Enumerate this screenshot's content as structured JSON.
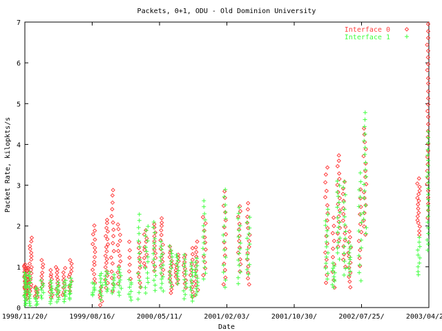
{
  "chart_data": {
    "type": "scatter",
    "title": "Packets, 0+1, ODU - Old Dominion University",
    "xlabel": "Date",
    "ylabel": "Packet Rate, kilopkts/s",
    "xlim": [
      "1998-11-20",
      "2003-04-20"
    ],
    "ylim": [
      0,
      7
    ],
    "x_ticks": [
      "1998/11/20/",
      "1999/08/16/",
      "2000/05/11/",
      "2001/02/03/",
      "2001/10/30/",
      "2002/07/25/",
      "2003/04/20/"
    ],
    "y_ticks": [
      "0",
      "1",
      "2",
      "3",
      "4",
      "5",
      "6",
      "7"
    ],
    "grid": false,
    "legend_position": "top-right",
    "series": [
      {
        "name": "Interface 0",
        "marker": "diamond",
        "color": "#ff4040",
        "clusters": [
          {
            "x": "1998-11-22",
            "ymin": 0.3,
            "ymax": 1.05,
            "n": 26
          },
          {
            "x": "1998-12-01",
            "ymin": 0.2,
            "ymax": 1.0,
            "n": 18
          },
          {
            "x": "1998-12-12",
            "ymin": 0.4,
            "ymax": 1.7,
            "n": 16
          },
          {
            "x": "1999-01-05",
            "ymin": 0.25,
            "ymax": 0.5,
            "n": 8
          },
          {
            "x": "1999-01-28",
            "ymin": 0.5,
            "ymax": 1.15,
            "n": 8
          },
          {
            "x": "1999-03-05",
            "ymin": 0.25,
            "ymax": 0.9,
            "n": 10
          },
          {
            "x": "1999-03-28",
            "ymin": 0.3,
            "ymax": 1.0,
            "n": 10
          },
          {
            "x": "1999-04-25",
            "ymin": 0.3,
            "ymax": 0.95,
            "n": 8
          },
          {
            "x": "1999-05-20",
            "ymin": 0.4,
            "ymax": 1.15,
            "n": 10
          },
          {
            "x": "1999-08-22",
            "ymin": 0.6,
            "ymax": 2.0,
            "n": 14
          },
          {
            "x": "1999-09-20",
            "ymin": 0.05,
            "ymax": 0.5,
            "n": 6
          },
          {
            "x": "1999-10-12",
            "ymin": 0.5,
            "ymax": 2.15,
            "n": 18
          },
          {
            "x": "1999-11-05",
            "ymin": 0.4,
            "ymax": 2.9,
            "n": 16
          },
          {
            "x": "1999-12-01",
            "ymin": 0.6,
            "ymax": 2.05,
            "n": 12
          },
          {
            "x": "2000-01-15",
            "ymin": 0.7,
            "ymax": 1.6,
            "n": 6
          },
          {
            "x": "2000-02-20",
            "ymin": 0.5,
            "ymax": 1.6,
            "n": 10
          },
          {
            "x": "2000-03-15",
            "ymin": 1.0,
            "ymax": 1.9,
            "n": 10
          },
          {
            "x": "2000-04-20",
            "ymin": 0.9,
            "ymax": 2.05,
            "n": 12
          },
          {
            "x": "2000-05-20",
            "ymin": 0.8,
            "ymax": 2.2,
            "n": 14
          },
          {
            "x": "2000-06-25",
            "ymin": 0.35,
            "ymax": 1.5,
            "n": 14
          },
          {
            "x": "2000-07-20",
            "ymin": 0.6,
            "ymax": 1.3,
            "n": 10
          },
          {
            "x": "2000-08-20",
            "ymin": 0.5,
            "ymax": 1.3,
            "n": 10
          },
          {
            "x": "2000-09-15",
            "ymin": 0.25,
            "ymax": 1.45,
            "n": 10
          },
          {
            "x": "2000-10-05",
            "ymin": 0.3,
            "ymax": 1.6,
            "n": 12
          },
          {
            "x": "2000-11-05",
            "ymin": 0.8,
            "ymax": 2.2,
            "n": 10
          },
          {
            "x": "2001-01-25",
            "ymin": 0.55,
            "ymax": 2.85,
            "n": 14
          },
          {
            "x": "2001-03-25",
            "ymin": 0.9,
            "ymax": 2.5,
            "n": 12
          },
          {
            "x": "2001-04-30",
            "ymin": 0.55,
            "ymax": 2.55,
            "n": 14
          },
          {
            "x": "2002-03-08",
            "ymin": 0.6,
            "ymax": 3.45,
            "n": 16
          },
          {
            "x": "2002-04-05",
            "ymin": 0.5,
            "ymax": 2.2,
            "n": 10
          },
          {
            "x": "2002-04-25",
            "ymin": 1.5,
            "ymax": 3.75,
            "n": 16
          },
          {
            "x": "2002-05-18",
            "ymin": 1.0,
            "ymax": 3.1,
            "n": 14
          },
          {
            "x": "2002-06-08",
            "ymin": 0.5,
            "ymax": 1.85,
            "n": 12
          },
          {
            "x": "2002-07-20",
            "ymin": 1.0,
            "ymax": 2.9,
            "n": 10
          },
          {
            "x": "2002-08-08",
            "ymin": 1.8,
            "ymax": 4.4,
            "n": 16
          },
          {
            "x": "2003-03-10",
            "ymin": 1.8,
            "ymax": 3.15,
            "n": 16
          },
          {
            "x": "2003-04-18",
            "ymin": 2.2,
            "ymax": 6.95,
            "n": 30
          }
        ]
      },
      {
        "name": "Interface 1",
        "marker": "plus",
        "color": "#40ff40",
        "clusters": [
          {
            "x": "1998-11-22",
            "ymin": 0.05,
            "ymax": 0.85,
            "n": 22
          },
          {
            "x": "1998-12-08",
            "ymin": 0.05,
            "ymax": 0.85,
            "n": 16
          },
          {
            "x": "1999-01-05",
            "ymin": 0.05,
            "ymax": 0.5,
            "n": 10
          },
          {
            "x": "1999-01-28",
            "ymin": 0.25,
            "ymax": 0.65,
            "n": 8
          },
          {
            "x": "1999-03-05",
            "ymin": 0.1,
            "ymax": 0.65,
            "n": 10
          },
          {
            "x": "1999-04-01",
            "ymin": 0.15,
            "ymax": 0.6,
            "n": 10
          },
          {
            "x": "1999-04-28",
            "ymin": 0.15,
            "ymax": 0.65,
            "n": 10
          },
          {
            "x": "1999-05-20",
            "ymin": 0.2,
            "ymax": 0.7,
            "n": 10
          },
          {
            "x": "1999-08-22",
            "ymin": 0.3,
            "ymax": 0.6,
            "n": 8
          },
          {
            "x": "1999-09-20",
            "ymin": 0.2,
            "ymax": 0.85,
            "n": 10
          },
          {
            "x": "1999-10-12",
            "ymin": 0.4,
            "ymax": 0.9,
            "n": 8
          },
          {
            "x": "1999-11-08",
            "ymin": 0.35,
            "ymax": 0.8,
            "n": 8
          },
          {
            "x": "1999-12-05",
            "ymin": 0.3,
            "ymax": 1.0,
            "n": 10
          },
          {
            "x": "2000-01-15",
            "ymin": 0.2,
            "ymax": 0.7,
            "n": 8
          },
          {
            "x": "2000-02-20",
            "ymin": 0.2,
            "ymax": 2.3,
            "n": 14
          },
          {
            "x": "2000-03-20",
            "ymin": 0.35,
            "ymax": 2.0,
            "n": 14
          },
          {
            "x": "2000-04-20",
            "ymin": 0.4,
            "ymax": 2.1,
            "n": 14
          },
          {
            "x": "2000-05-20",
            "ymin": 0.4,
            "ymax": 1.6,
            "n": 14
          },
          {
            "x": "2000-06-25",
            "ymin": 0.5,
            "ymax": 1.5,
            "n": 12
          },
          {
            "x": "2000-07-20",
            "ymin": 0.6,
            "ymax": 1.3,
            "n": 10
          },
          {
            "x": "2000-08-20",
            "ymin": 0.2,
            "ymax": 1.3,
            "n": 12
          },
          {
            "x": "2000-09-15",
            "ymin": 0.15,
            "ymax": 1.1,
            "n": 12
          },
          {
            "x": "2000-10-05",
            "ymin": 0.3,
            "ymax": 1.2,
            "n": 12
          },
          {
            "x": "2000-11-05",
            "ymin": 0.7,
            "ymax": 2.6,
            "n": 14
          },
          {
            "x": "2001-01-25",
            "ymin": 0.5,
            "ymax": 2.9,
            "n": 14
          },
          {
            "x": "2001-03-25",
            "ymin": 0.6,
            "ymax": 2.45,
            "n": 14
          },
          {
            "x": "2001-04-30",
            "ymin": 0.8,
            "ymax": 2.2,
            "n": 12
          },
          {
            "x": "2002-03-08",
            "ymin": 0.7,
            "ymax": 2.4,
            "n": 14
          },
          {
            "x": "2002-04-05",
            "ymin": 0.5,
            "ymax": 1.1,
            "n": 10
          },
          {
            "x": "2002-04-25",
            "ymin": 1.2,
            "ymax": 3.1,
            "n": 16
          },
          {
            "x": "2002-05-18",
            "ymin": 0.8,
            "ymax": 3.1,
            "n": 14
          },
          {
            "x": "2002-06-08",
            "ymin": 0.8,
            "ymax": 1.6,
            "n": 10
          },
          {
            "x": "2002-07-20",
            "ymin": 0.65,
            "ymax": 3.3,
            "n": 14
          },
          {
            "x": "2002-08-08",
            "ymin": 1.8,
            "ymax": 4.8,
            "n": 18
          },
          {
            "x": "2003-03-10",
            "ymin": 0.8,
            "ymax": 1.7,
            "n": 10
          },
          {
            "x": "2003-04-18",
            "ymin": 1.4,
            "ymax": 4.3,
            "n": 22
          }
        ]
      }
    ]
  }
}
